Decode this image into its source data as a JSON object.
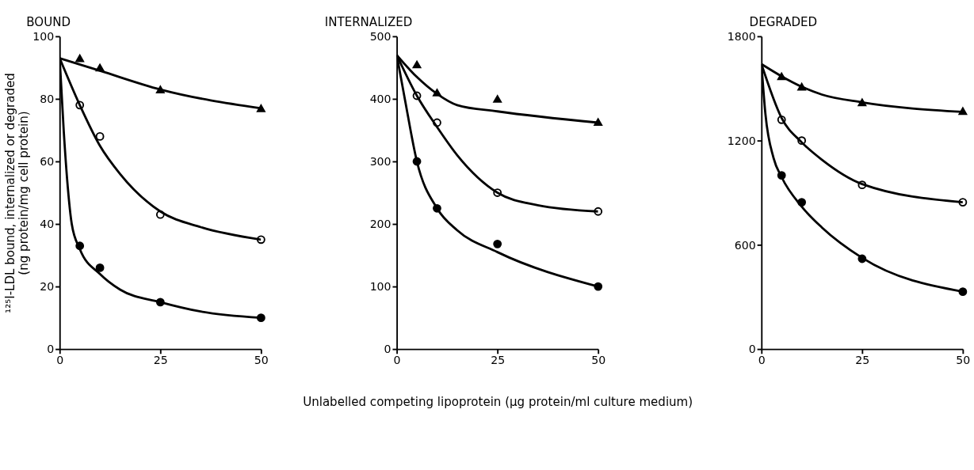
{
  "chart_data": [
    {
      "type": "scatter",
      "title": "BOUND",
      "ylabel": "¹²⁵I-LDL bound, internalized or degraded\n(ng protein/mg cell protein)",
      "xlim": [
        0,
        50
      ],
      "xticks": [
        0,
        25,
        50
      ],
      "ylim": [
        0,
        100
      ],
      "yticks": [
        0,
        20,
        40,
        60,
        80,
        100
      ],
      "grid": false,
      "series": [
        {
          "color": "#000000",
          "marker": "triangle",
          "x": [
            5,
            10,
            25,
            50
          ],
          "values": [
            93,
            90,
            83,
            77
          ]
        },
        {
          "color": "#ffffff",
          "marker": "circle",
          "x": [
            5,
            10,
            25,
            50
          ],
          "values": [
            78,
            68,
            43,
            35
          ]
        },
        {
          "color": "#000000",
          "marker": "circle",
          "x": [
            5,
            10,
            25,
            50
          ],
          "values": [
            33,
            26,
            15,
            10
          ]
        },
        {
          "type": "line",
          "color": "#000000",
          "marker": "none",
          "x": [
            0,
            10,
            25,
            50
          ],
          "values": [
            93,
            89,
            83,
            77
          ]
        },
        {
          "type": "line",
          "color": "#000000",
          "marker": "none",
          "x": [
            0,
            5,
            10,
            15,
            25,
            35,
            50
          ],
          "values": [
            93,
            78,
            65,
            56,
            44,
            39,
            35
          ]
        },
        {
          "type": "line",
          "color": "#000000",
          "marker": "none",
          "x": [
            0,
            1,
            2,
            3,
            5,
            10,
            15,
            25,
            35,
            50
          ],
          "values": [
            93,
            70,
            52,
            40,
            32,
            24,
            19,
            15,
            12,
            10
          ]
        }
      ]
    },
    {
      "type": "scatter",
      "title": "INTERNALIZED",
      "xlabel": "Unlabelled competing lipoprotein (µg protein/ml culture medium)",
      "xlim": [
        0,
        50
      ],
      "xticks": [
        0,
        25,
        50
      ],
      "ylim": [
        0,
        500
      ],
      "yticks": [
        0,
        100,
        200,
        300,
        400,
        500
      ],
      "grid": false,
      "series": [
        {
          "color": "#000000",
          "marker": "triangle",
          "x": [
            5,
            10,
            25,
            50
          ],
          "values": [
            455,
            410,
            400,
            363
          ]
        },
        {
          "color": "#ffffff",
          "marker": "circle",
          "x": [
            5,
            10,
            25,
            50
          ],
          "values": [
            405,
            362,
            250,
            220
          ]
        },
        {
          "color": "#000000",
          "marker": "circle",
          "x": [
            5,
            10,
            25,
            50
          ],
          "values": [
            300,
            225,
            168,
            100
          ]
        },
        {
          "type": "line",
          "color": "#000000",
          "marker": "none",
          "x": [
            0,
            5,
            10,
            15,
            25,
            50
          ],
          "values": [
            470,
            435,
            408,
            390,
            380,
            362
          ]
        },
        {
          "type": "line",
          "color": "#000000",
          "marker": "none",
          "x": [
            0,
            5,
            10,
            15,
            25,
            35,
            50
          ],
          "values": [
            470,
            405,
            355,
            310,
            250,
            230,
            220
          ]
        },
        {
          "type": "line",
          "color": "#000000",
          "marker": "none",
          "x": [
            0,
            2,
            5,
            10,
            15,
            25,
            50
          ],
          "values": [
            470,
            400,
            300,
            225,
            190,
            155,
            100
          ]
        }
      ]
    },
    {
      "type": "scatter",
      "title": "DEGRADED",
      "xlim": [
        0,
        50
      ],
      "xticks": [
        0,
        25,
        50
      ],
      "ylim": [
        0,
        1800
      ],
      "yticks": [
        0,
        600,
        1200,
        1800
      ],
      "grid": false,
      "series": [
        {
          "color": "#000000",
          "marker": "triangle",
          "x": [
            5,
            10,
            25,
            50
          ],
          "values": [
            1570,
            1510,
            1420,
            1370
          ]
        },
        {
          "color": "#ffffff",
          "marker": "circle",
          "x": [
            5,
            10,
            25,
            50
          ],
          "values": [
            1320,
            1200,
            945,
            845
          ]
        },
        {
          "color": "#000000",
          "marker": "circle",
          "x": [
            5,
            10,
            25,
            50
          ],
          "values": [
            1000,
            845,
            520,
            330
          ]
        },
        {
          "type": "line",
          "color": "#000000",
          "marker": "none",
          "x": [
            0,
            5,
            10,
            15,
            25,
            50
          ],
          "values": [
            1640,
            1570,
            1510,
            1465,
            1420,
            1365
          ]
        },
        {
          "type": "line",
          "color": "#000000",
          "marker": "none",
          "x": [
            0,
            5,
            10,
            15,
            25,
            50
          ],
          "values": [
            1640,
            1330,
            1190,
            1090,
            950,
            845
          ]
        },
        {
          "type": "line",
          "color": "#000000",
          "marker": "none",
          "x": [
            0,
            1,
            3,
            5,
            10,
            15,
            25,
            50
          ],
          "values": [
            1640,
            1350,
            1100,
            990,
            820,
            700,
            525,
            330
          ]
        }
      ]
    }
  ]
}
